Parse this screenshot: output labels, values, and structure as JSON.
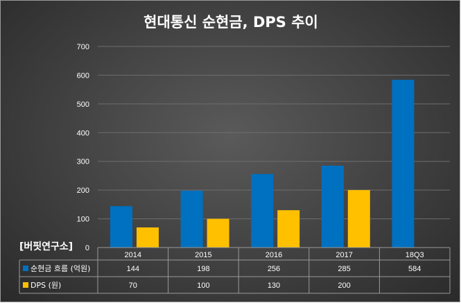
{
  "source_label": "[버핏연구소]",
  "chart_data": {
    "type": "bar",
    "title": "현대통신 순현금, DPS 추이",
    "categories": [
      "2014",
      "2015",
      "2016",
      "2017",
      "18Q3"
    ],
    "ylim": [
      0,
      700
    ],
    "yticks": [
      "0",
      "100",
      "200",
      "300",
      "400",
      "500",
      "600",
      "700"
    ],
    "series": [
      {
        "name": "순현금 흐름 (억원)",
        "color": "#0070c0",
        "values": [
          144,
          198,
          256,
          285,
          584
        ]
      },
      {
        "name": "DPS (원)",
        "color": "#ffc000",
        "values": [
          70,
          100,
          130,
          200,
          null
        ]
      }
    ],
    "data_table": {
      "rows": [
        [
          "144",
          "198",
          "256",
          "285",
          "584"
        ],
        [
          "70",
          "100",
          "130",
          "200",
          ""
        ]
      ]
    },
    "grid": true
  }
}
